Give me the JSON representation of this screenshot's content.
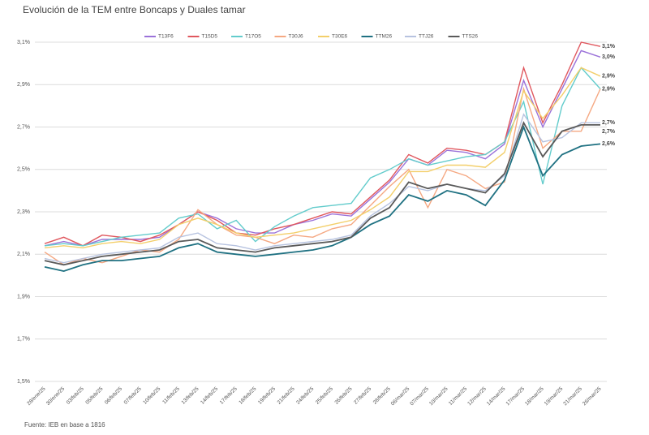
{
  "chart_data": {
    "type": "line",
    "title": "Evolución de la TEM entre Boncaps y Duales tamar",
    "source": "Fuente: IEB en base a 1816",
    "categories": [
      "28/ene/25",
      "30/ene/25",
      "03/feb/25",
      "05/feb/25",
      "06/feb/25",
      "07/feb/25",
      "10/feb/25",
      "11/feb/25",
      "13/feb/25",
      "14/feb/25",
      "17/feb/25",
      "18/feb/25",
      "19/feb/25",
      "21/feb/25",
      "24/feb/25",
      "25/feb/25",
      "26/feb/25",
      "27/feb/25",
      "28/feb/25",
      "06/mar/25",
      "07/mar/25",
      "10/mar/25",
      "11/mar/25",
      "12/mar/25",
      "14/mar/25",
      "17/mar/25",
      "18/mar/25",
      "19/mar/25",
      "21/mar/25",
      "26/mar/25"
    ],
    "ylim": [
      1.5,
      3.1
    ],
    "yticks": [
      {
        "value": 1.5,
        "label": "1,5%"
      },
      {
        "value": 1.7,
        "label": "1,7%"
      },
      {
        "value": 1.9,
        "label": "1,9%"
      },
      {
        "value": 2.1,
        "label": "2,1%"
      },
      {
        "value": 2.3,
        "label": "2,3%"
      },
      {
        "value": 2.5,
        "label": "2,5%"
      },
      {
        "value": 2.7,
        "label": "2,7%"
      },
      {
        "value": 2.9,
        "label": "2,9%"
      },
      {
        "value": 3.1,
        "label": "3,1%"
      }
    ],
    "grid": true,
    "legend": "top",
    "series": [
      {
        "name": "T13F6",
        "color": "#9b72d9",
        "values": [
          2.14,
          2.16,
          2.14,
          2.17,
          2.17,
          2.17,
          2.18,
          2.24,
          2.3,
          2.27,
          2.22,
          2.2,
          2.2,
          2.24,
          2.26,
          2.29,
          2.28,
          2.36,
          2.44,
          2.55,
          2.52,
          2.59,
          2.58,
          2.55,
          2.62,
          2.92,
          2.7,
          2.88,
          3.06,
          3.03
        ],
        "value_labels": [
          null,
          null,
          null,
          null,
          null,
          null,
          null,
          null,
          null,
          null,
          null,
          null,
          null,
          null,
          null,
          null,
          null,
          null,
          null,
          null,
          null,
          null,
          null,
          null,
          null,
          null,
          null,
          null,
          null,
          "3,0%"
        ]
      },
      {
        "name": "T15D5",
        "color": "#e0575e",
        "values": [
          2.15,
          2.18,
          2.14,
          2.19,
          2.18,
          2.16,
          2.19,
          2.24,
          2.3,
          2.26,
          2.2,
          2.19,
          2.22,
          2.24,
          2.27,
          2.3,
          2.29,
          2.37,
          2.45,
          2.57,
          2.53,
          2.6,
          2.59,
          2.57,
          2.63,
          2.98,
          2.72,
          2.9,
          3.1,
          3.08
        ],
        "value_labels": [
          null,
          null,
          null,
          null,
          null,
          null,
          null,
          null,
          null,
          null,
          null,
          null,
          null,
          null,
          null,
          null,
          null,
          null,
          null,
          null,
          null,
          null,
          null,
          null,
          null,
          null,
          null,
          null,
          null,
          "3,1%"
        ]
      },
      {
        "name": "T17O5",
        "color": "#63cccc",
        "values": [
          2.14,
          2.15,
          2.14,
          2.16,
          2.18,
          2.19,
          2.2,
          2.27,
          2.29,
          2.22,
          2.26,
          2.16,
          2.23,
          2.28,
          2.32,
          2.33,
          2.34,
          2.46,
          2.5,
          2.55,
          2.52,
          2.54,
          2.56,
          2.57,
          2.63,
          2.82,
          2.43,
          2.8,
          2.98,
          2.88
        ],
        "value_labels": [
          null,
          null,
          null,
          null,
          null,
          null,
          null,
          null,
          null,
          null,
          null,
          null,
          null,
          null,
          null,
          null,
          null,
          null,
          null,
          null,
          null,
          null,
          null,
          null,
          null,
          null,
          null,
          null,
          null,
          "2,9%"
        ]
      },
      {
        "name": "T30J6",
        "color": "#f5a882",
        "values": [
          2.11,
          2.05,
          2.08,
          2.06,
          2.09,
          2.12,
          2.11,
          2.17,
          2.31,
          2.24,
          2.19,
          2.18,
          2.15,
          2.19,
          2.18,
          2.22,
          2.24,
          2.33,
          2.42,
          2.5,
          2.32,
          2.5,
          2.47,
          2.41,
          2.44,
          2.88,
          2.6,
          2.68,
          2.68,
          2.88
        ]
      },
      {
        "name": "T30E6",
        "color": "#f3cf6a",
        "values": [
          2.13,
          2.14,
          2.13,
          2.15,
          2.16,
          2.15,
          2.17,
          2.24,
          2.27,
          2.24,
          2.2,
          2.18,
          2.19,
          2.2,
          2.22,
          2.24,
          2.26,
          2.31,
          2.37,
          2.49,
          2.49,
          2.52,
          2.52,
          2.51,
          2.58,
          2.87,
          2.74,
          2.85,
          2.98,
          2.94
        ],
        "value_labels": [
          null,
          null,
          null,
          null,
          null,
          null,
          null,
          null,
          null,
          null,
          null,
          null,
          null,
          null,
          null,
          null,
          null,
          null,
          null,
          null,
          null,
          null,
          null,
          null,
          null,
          null,
          null,
          null,
          null,
          "2,9%"
        ]
      },
      {
        "name": "TTM26",
        "color": "#1f7182",
        "values": [
          2.04,
          2.02,
          2.05,
          2.07,
          2.07,
          2.08,
          2.09,
          2.13,
          2.15,
          2.11,
          2.1,
          2.09,
          2.1,
          2.11,
          2.12,
          2.14,
          2.18,
          2.24,
          2.28,
          2.38,
          2.35,
          2.4,
          2.38,
          2.33,
          2.45,
          2.7,
          2.47,
          2.57,
          2.61,
          2.62
        ],
        "value_labels": [
          null,
          null,
          null,
          null,
          null,
          null,
          null,
          null,
          null,
          null,
          null,
          null,
          null,
          null,
          null,
          null,
          null,
          null,
          null,
          null,
          null,
          null,
          null,
          null,
          null,
          null,
          null,
          null,
          null,
          "2,6%"
        ]
      },
      {
        "name": "TTJ26",
        "color": "#b7c3e0",
        "values": [
          2.08,
          2.06,
          2.08,
          2.1,
          2.11,
          2.12,
          2.13,
          2.18,
          2.2,
          2.15,
          2.14,
          2.12,
          2.14,
          2.15,
          2.16,
          2.17,
          2.19,
          2.28,
          2.34,
          2.42,
          2.4,
          2.43,
          2.41,
          2.4,
          2.47,
          2.76,
          2.63,
          2.65,
          2.72,
          2.72
        ],
        "value_labels": [
          null,
          null,
          null,
          null,
          null,
          null,
          null,
          null,
          null,
          null,
          null,
          null,
          null,
          null,
          null,
          null,
          null,
          null,
          null,
          null,
          null,
          null,
          null,
          null,
          null,
          null,
          null,
          null,
          null,
          "2,7%"
        ]
      },
      {
        "name": "TTS26",
        "color": "#5a5a5a",
        "values": [
          2.07,
          2.05,
          2.07,
          2.09,
          2.1,
          2.11,
          2.12,
          2.16,
          2.17,
          2.13,
          2.12,
          2.11,
          2.13,
          2.14,
          2.15,
          2.16,
          2.18,
          2.27,
          2.32,
          2.44,
          2.41,
          2.43,
          2.41,
          2.39,
          2.48,
          2.72,
          2.56,
          2.68,
          2.71,
          2.71
        ],
        "value_labels": [
          null,
          null,
          null,
          null,
          null,
          null,
          null,
          null,
          null,
          null,
          null,
          null,
          null,
          null,
          null,
          null,
          null,
          null,
          null,
          null,
          null,
          null,
          null,
          null,
          null,
          null,
          null,
          null,
          null,
          "2,7%"
        ]
      }
    ]
  }
}
